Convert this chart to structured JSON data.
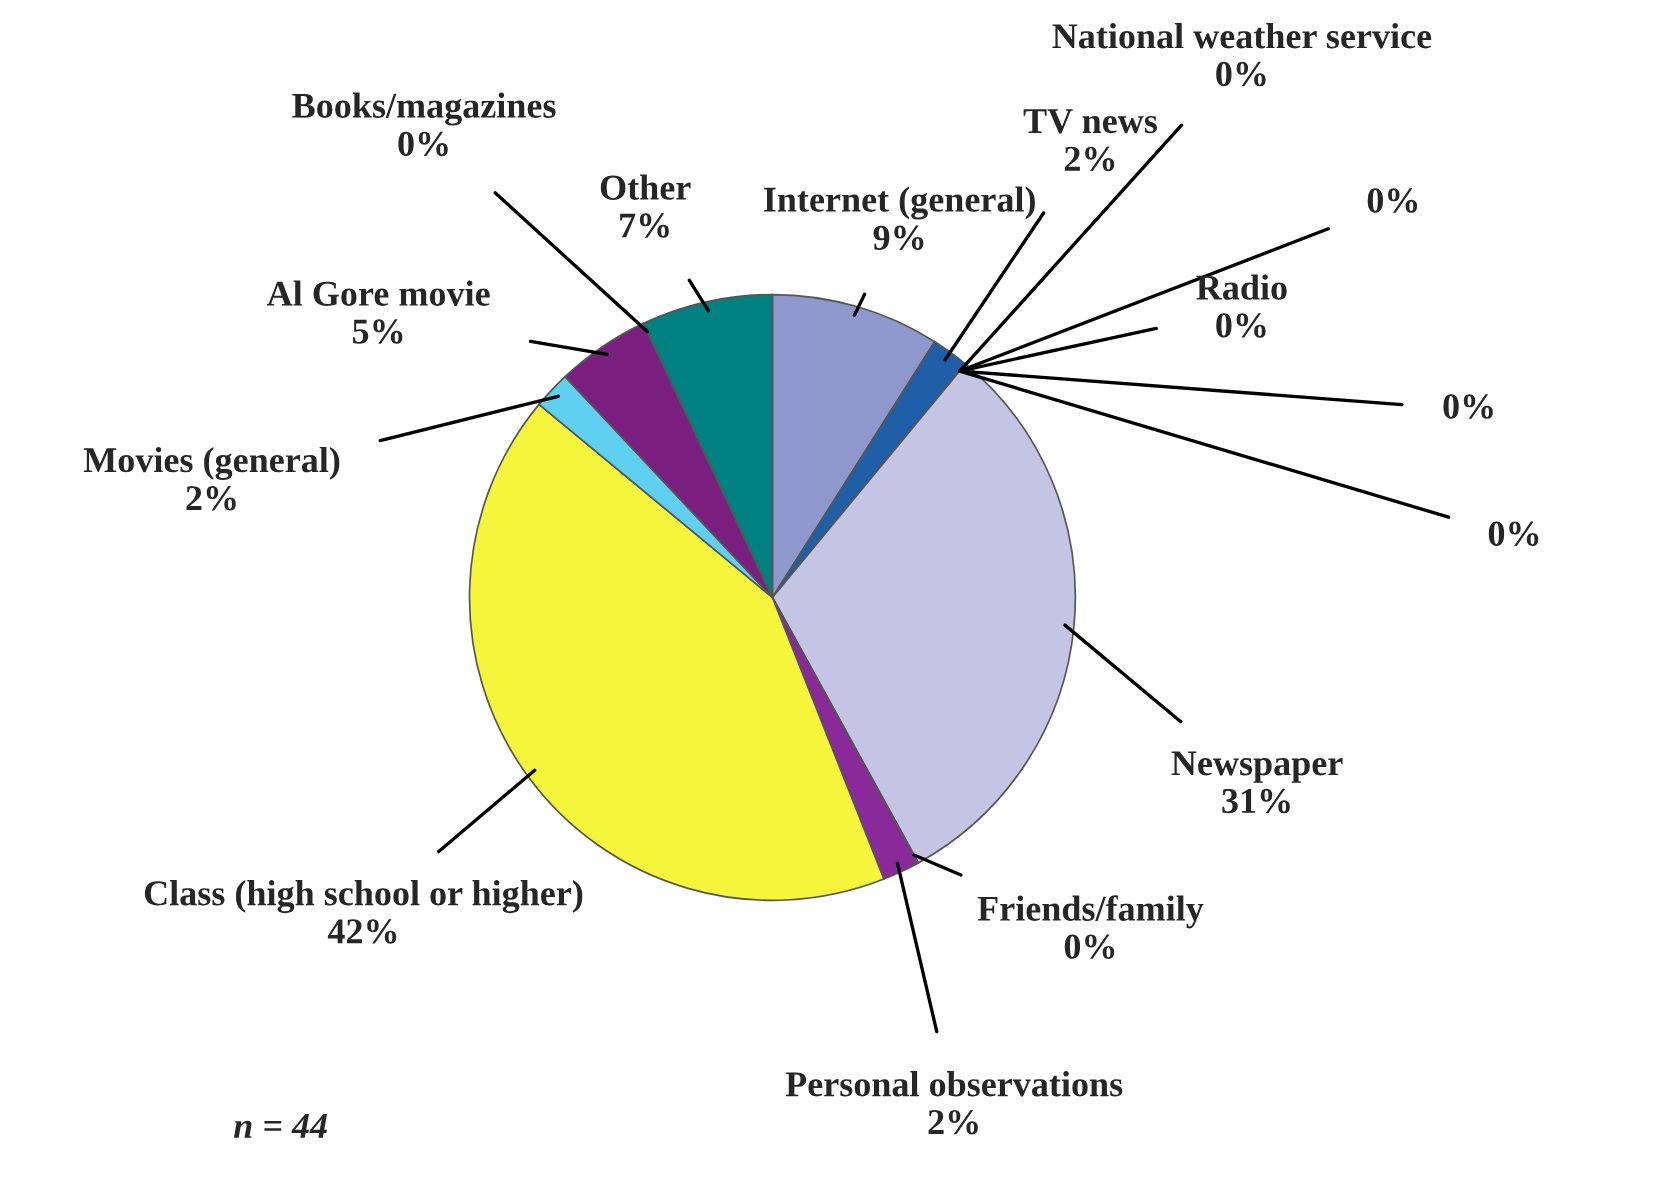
{
  "chart_data": {
    "type": "pie",
    "categories": [
      "Internet (general)",
      "TV news",
      "National weather service",
      null,
      "Radio",
      null,
      null,
      "Newspaper",
      "Friends/family",
      "Personal observations",
      "Class (high school or higher)",
      "Movies (general)",
      "Al Gore movie",
      "Books/magazines",
      "Other"
    ],
    "values": [
      9,
      2,
      0,
      0,
      0,
      0,
      0,
      31,
      0,
      2,
      42,
      2,
      5,
      0,
      7
    ],
    "value_labels": [
      "9%",
      "2%",
      "0%",
      "0%",
      "0%",
      "0%",
      "0%",
      "31%",
      "0%",
      "2%",
      "42%",
      "2%",
      "5%",
      "0%",
      "7%"
    ],
    "colors": [
      "#8f98cc",
      "#1f5fa8",
      "#2a4f9a",
      "#3a6fb0",
      "#4a7fc0",
      "#5a8fd0",
      "#6a9fe0",
      "#c4c4e4",
      "#a020a0",
      "#8a2a9a",
      "#f5f53c",
      "#60d0f0",
      "#7a1f7f",
      "#5a2070",
      "#008080"
    ],
    "annotations": [
      "n = 44"
    ]
  }
}
